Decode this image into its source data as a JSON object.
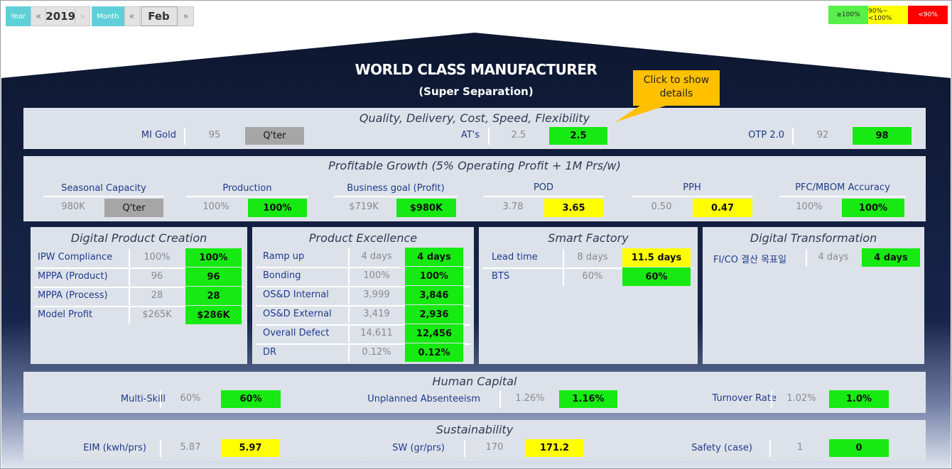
{
  "nav": {
    "year_label": "Year",
    "year_prev": "«",
    "year_value": "2019",
    "year_next": "»",
    "month_label": "Month",
    "month_prev": "«",
    "month_value": "Feb",
    "month_next": "»"
  },
  "legend": {
    "green": "≥100%",
    "yellow": "90%~<100%",
    "red": "<90%"
  },
  "house": {
    "title": "WORLD CLASS MANUFACTURER",
    "subtitle": "(Super Separation)"
  },
  "callout": "Click to show details",
  "colors": {
    "green": "#17ea12",
    "yellow": "#ffff00",
    "red": "#ff0000",
    "navy": "#0e1a33",
    "panel": "#dde2ea"
  },
  "quality": {
    "title": "Quality, Delivery, Cost, Speed, Flexibility",
    "items": [
      {
        "label": "MI Gold",
        "prev": "95",
        "cur": "Q'ter"
      },
      {
        "label": "AT's",
        "prev": "2.5",
        "cur": "2.5"
      },
      {
        "label": "OTP 2.0",
        "prev": "92",
        "cur": "98"
      }
    ]
  },
  "growth": {
    "title": "Profitable Growth (5% Operating Profit + 1M Prs/w)",
    "items": [
      {
        "label": "Seasonal Capacity",
        "prev": "980K",
        "cur": "Q'ter"
      },
      {
        "label": "Production",
        "prev": "100%",
        "cur": "100%"
      },
      {
        "label": "Business goal (Profit)",
        "prev": "$719K",
        "cur": "$980K"
      },
      {
        "label": "POD",
        "prev": "3.78",
        "cur": "3.65"
      },
      {
        "label": "PPH",
        "prev": "0.50",
        "cur": "0.47"
      },
      {
        "label": "PFC/MBOM Accuracy",
        "prev": "100%",
        "cur": "100%"
      }
    ]
  },
  "digital_product": {
    "title": "Digital Product Creation",
    "rows": [
      {
        "label": "IPW Compliance",
        "prev": "100%",
        "cur": "100%"
      },
      {
        "label": "MPPA (Product)",
        "prev": "96",
        "cur": "96"
      },
      {
        "label": "MPPA (Process)",
        "prev": "28",
        "cur": "28"
      },
      {
        "label": "Model Profit",
        "prev": "$265K",
        "cur": "$286K"
      }
    ]
  },
  "product_excellence": {
    "title": "Product Excellence",
    "rows": [
      {
        "label": "Ramp up",
        "prev": "4 days",
        "cur": "4 days"
      },
      {
        "label": "Bonding",
        "prev": "100%",
        "cur": "100%"
      },
      {
        "label": "OS&D Internal",
        "prev": "3,999",
        "cur": "3,846"
      },
      {
        "label": "OS&D External",
        "prev": "3,419",
        "cur": "2,936"
      },
      {
        "label": "Overall Defect",
        "prev": "14,611",
        "cur": "12,456"
      },
      {
        "label": "DR",
        "prev": "0.12%",
        "cur": "0.12%"
      }
    ]
  },
  "smart_factory": {
    "title": "Smart Factory",
    "rows": [
      {
        "label": "Lead time",
        "prev": "8 days",
        "cur": "11.5 days"
      },
      {
        "label": "BTS",
        "prev": "60%",
        "cur": "60%"
      }
    ]
  },
  "digital_transformation": {
    "title": "Digital Transformation",
    "rows": [
      {
        "label": "FI/CO 결산 목표일",
        "prev": "4 days",
        "cur": "4 days"
      }
    ]
  },
  "human_capital": {
    "title": "Human Capital",
    "items": [
      {
        "label": "Multi-Skill",
        "prev": "60%",
        "cur": "60%"
      },
      {
        "label": "Unplanned Absenteeism",
        "prev": "1.26%",
        "cur": "1.16%"
      },
      {
        "label": "Turnover Rate",
        "prev": "1.02%",
        "cur": "1.0%"
      }
    ]
  },
  "sustainability": {
    "title": "Sustainability",
    "items": [
      {
        "label": "EIM (kwh/prs)",
        "prev": "5.87",
        "cur": "5.97"
      },
      {
        "label": "SW (gr/prs)",
        "prev": "170",
        "cur": "171.2"
      },
      {
        "label": "Safety (case)",
        "prev": "1",
        "cur": "0"
      }
    ]
  }
}
